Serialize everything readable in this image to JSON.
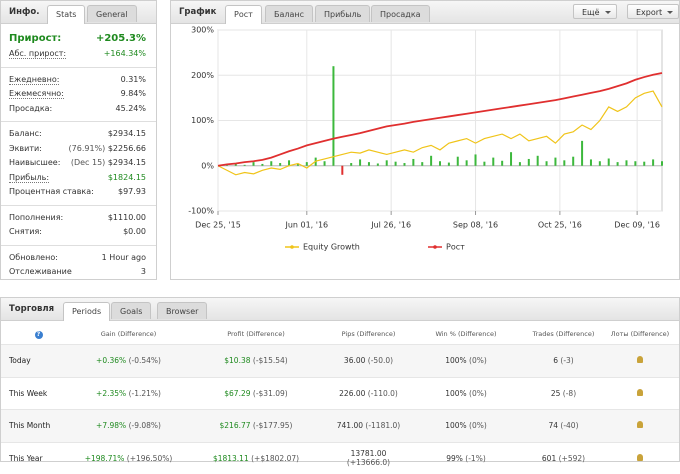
{
  "info": {
    "title": "Инфо.",
    "tabs": [
      "Stats",
      "General"
    ],
    "groups": [
      [
        {
          "label": "Прирост:",
          "value": "+205.3%"
        },
        {
          "label": "Абс. прирост:",
          "value": "+164.34%"
        }
      ],
      [
        {
          "label": "Ежедневно:",
          "value": "0.31%"
        },
        {
          "label": "Ежемесячно:",
          "value": "9.84%"
        },
        {
          "label": "Просадка:",
          "value": "45.24%"
        }
      ],
      [
        {
          "label": "Баланс:",
          "value": "$2934.15"
        },
        {
          "label": "Эквити:",
          "note": "(76.91%)",
          "value": "$2256.66"
        },
        {
          "label": "Наивысшее:",
          "note": "(Dec 15)",
          "value": "$2934.15"
        },
        {
          "label": "Прибыль:",
          "value": "$1824.15"
        },
        {
          "label": "Процентная ставка:",
          "value": "$97.93"
        }
      ],
      [
        {
          "label": "Пополнения:",
          "value": "$1110.00"
        },
        {
          "label": "Снятия:",
          "value": "$0.00"
        }
      ],
      [
        {
          "label": "Обновлено:",
          "value": "1 Hour ago"
        },
        {
          "label": "Отслеживание",
          "value": "3"
        }
      ]
    ]
  },
  "chart_panel": {
    "title": "График",
    "tabs": [
      "Рост",
      "Баланс",
      "Прибыль",
      "Просадка"
    ],
    "buttons": [
      "Ещё",
      "Export"
    ]
  },
  "chart_data": {
    "type": "line",
    "x": [
      0,
      1,
      2,
      3,
      4,
      5,
      6,
      7,
      8,
      9,
      10,
      11,
      12,
      13,
      14,
      15,
      16,
      17,
      18,
      19,
      20,
      21,
      22,
      23,
      24,
      25,
      26,
      27,
      28,
      29,
      30,
      31,
      32,
      33,
      34,
      35,
      36,
      37,
      38,
      39,
      40,
      41,
      42,
      43,
      44,
      45,
      46,
      47,
      48,
      49,
      50
    ],
    "xlim": [
      0,
      50
    ],
    "xticks": [
      {
        "value": 0,
        "label": "Dec 25, '15"
      },
      {
        "value": 10,
        "label": "Jun 01, '16"
      },
      {
        "value": 19.5,
        "label": "Jul 26, '16"
      },
      {
        "value": 29,
        "label": "Sep 08, '16"
      },
      {
        "value": 38.5,
        "label": "Oct 25, '16"
      },
      {
        "value": 47.2,
        "label": "Dec 09, '16"
      }
    ],
    "ylim": [
      -100,
      300
    ],
    "yticks": [
      {
        "value": 300,
        "label": "300%"
      },
      {
        "value": 200,
        "label": "200%"
      },
      {
        "value": 100,
        "label": "100%"
      },
      {
        "value": 0,
        "label": "0%"
      },
      {
        "value": -100,
        "label": "-100%"
      }
    ],
    "grid": true,
    "legend": "bottom",
    "series": [
      {
        "name": "Equity Growth",
        "color": "#f0c419",
        "values": [
          0,
          -10,
          -20,
          -15,
          -18,
          -10,
          -5,
          -8,
          0,
          5,
          -5,
          10,
          15,
          20,
          25,
          30,
          28,
          35,
          30,
          25,
          30,
          35,
          30,
          40,
          45,
          35,
          50,
          55,
          60,
          50,
          60,
          65,
          70,
          60,
          70,
          55,
          60,
          65,
          50,
          70,
          75,
          90,
          80,
          100,
          130,
          120,
          130,
          150,
          160,
          165,
          130
        ]
      },
      {
        "name": "Рост",
        "color": "#e02f2f",
        "values": [
          0,
          3,
          5,
          8,
          10,
          13,
          18,
          25,
          32,
          38,
          45,
          50,
          55,
          60,
          64,
          68,
          72,
          77,
          82,
          87,
          90,
          93,
          97,
          100,
          103,
          106,
          109,
          112,
          115,
          118,
          121,
          124,
          127,
          130,
          133,
          136,
          139,
          142,
          145,
          149,
          153,
          157,
          161,
          165,
          170,
          176,
          182,
          190,
          196,
          201,
          205
        ]
      },
      {
        "type": "bar",
        "color": "#3cb83c",
        "negative_color": "#e02f2f",
        "values": [
          0,
          3,
          5,
          2,
          8,
          4,
          10,
          6,
          12,
          5,
          8,
          18,
          10,
          220,
          -20,
          6,
          14,
          8,
          5,
          12,
          9,
          6,
          15,
          8,
          22,
          10,
          7,
          20,
          12,
          25,
          9,
          18,
          11,
          30,
          8,
          15,
          22,
          10,
          18,
          12,
          20,
          55,
          14,
          10,
          16,
          8,
          12,
          10,
          9,
          14,
          10
        ]
      }
    ]
  },
  "trading": {
    "title": "Торговля",
    "tabs": [
      "Periods",
      "Goals",
      "Browser"
    ],
    "help_icon": "?",
    "header": [
      "Gain (Difference)",
      "Profit (Difference)",
      "Pips (Difference)",
      "Win % (Difference)",
      "Trades (Difference)",
      "Лоты (Difference)"
    ],
    "rows": [
      [
        "Today",
        "+0.36%",
        "(-0.54%)",
        "$10.38",
        "(-$15.54)",
        "36.00",
        "(-50.0)",
        "100%",
        "(0%)",
        "6",
        "(-3)"
      ],
      [
        "This Week",
        "+2.35%",
        "(-1.21%)",
        "$67.29",
        "(-$31.09)",
        "226.00",
        "(-110.0)",
        "100%",
        "(0%)",
        "25",
        "(-8)"
      ],
      [
        "This Month",
        "+7.98%",
        "(-9.08%)",
        "$216.77",
        "(-$177.95)",
        "741.00",
        "(-1181.0)",
        "100%",
        "(0%)",
        "74",
        "(-40)"
      ],
      [
        "This Year",
        "+198.71%",
        "(+196.50%)",
        "$1813.11",
        "(+$1802.07)",
        "13781.00",
        "(+13666.0)",
        "99%",
        "(-1%)",
        "601",
        "(+592)"
      ]
    ]
  }
}
